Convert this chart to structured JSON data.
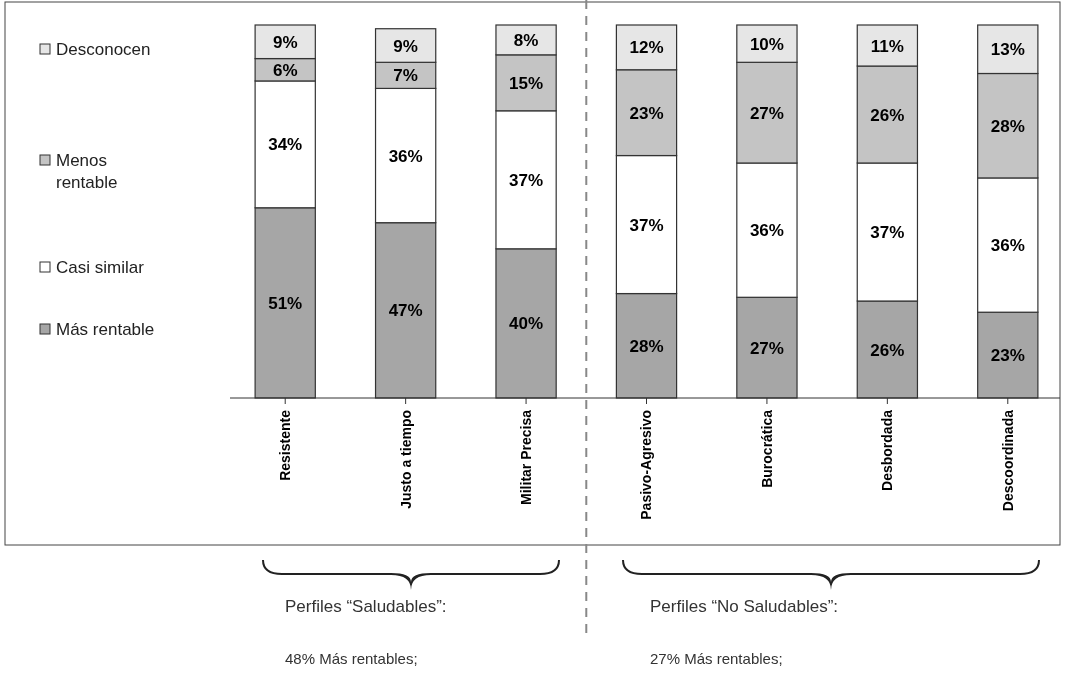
{
  "chart_data": {
    "type": "bar",
    "stacked": true,
    "categories": [
      "Resistente",
      "Justo a tiempo",
      "Militar Precisa",
      "Pasivo-Agresivo",
      "Burocrática",
      "Desbordada",
      "Descoordinada"
    ],
    "series": [
      {
        "name": "Más rentable",
        "color": "#a6a6a6",
        "values": [
          51,
          47,
          40,
          28,
          27,
          26,
          23
        ],
        "value_labels": [
          "51%",
          "47%",
          "40%",
          "28%",
          "27%",
          "26%",
          "23%"
        ]
      },
      {
        "name": "Casi similar",
        "color": "#ffffff",
        "values": [
          34,
          36,
          37,
          37,
          36,
          37,
          36
        ],
        "value_labels": [
          "34%",
          "36%",
          "37%",
          "37%",
          "36%",
          "37%",
          "36%"
        ]
      },
      {
        "name": "Menos rentable",
        "color": "#c4c4c4",
        "values": [
          6,
          7,
          15,
          23,
          27,
          26,
          28
        ],
        "value_labels": [
          "6%",
          "7%",
          "15%",
          "23%",
          "27%",
          "26%",
          "28%"
        ]
      },
      {
        "name": "Desconocen",
        "color": "#e6e6e6",
        "values": [
          9,
          9,
          8,
          12,
          10,
          11,
          13
        ],
        "value_labels": [
          "9%",
          "9%",
          "8%",
          "12%",
          "10%",
          "11%",
          "13%"
        ]
      }
    ],
    "tick_labels": "x",
    "legend": "left",
    "annotations": [
      "Perfiles “Saludables”:",
      "48% Más rentables;",
      "Perfiles “No Saludables”:",
      "27% Más rentables;"
    ]
  }
}
